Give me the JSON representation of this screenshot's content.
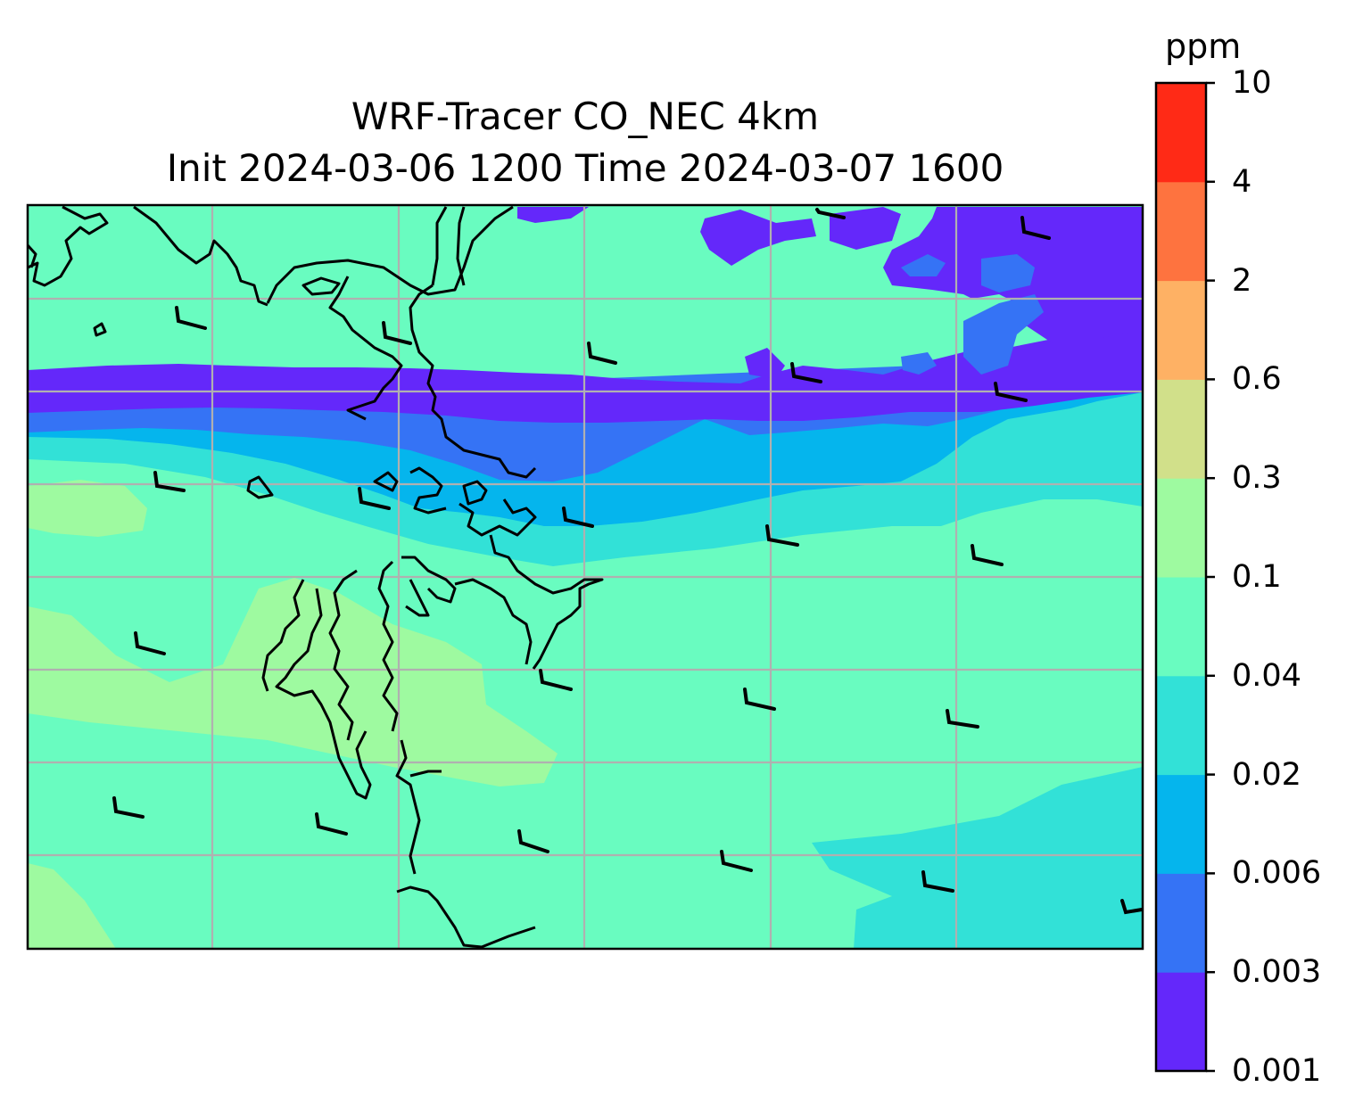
{
  "title": {
    "line1": "WRF-Tracer CO_NEC 4km",
    "line2": "Init 2024-03-06 1200 Time 2024-03-07 1600"
  },
  "colorbar": {
    "unit": "ppm",
    "ticks": [
      "0.001",
      "0.003",
      "0.006",
      "0.02",
      "0.04",
      "0.1",
      "0.3",
      "0.6",
      "2",
      "4",
      "10"
    ],
    "colors": [
      "#6428fa",
      "#3573f5",
      "#05b5ed",
      "#32e1d7",
      "#69fcc0",
      "#9efaa0",
      "#d1e08a",
      "#feb164",
      "#fe733f",
      "#ff2a16"
    ]
  },
  "map": {
    "gridlines": true,
    "wind_barbs": true,
    "land_fill": "#ffffff"
  }
}
